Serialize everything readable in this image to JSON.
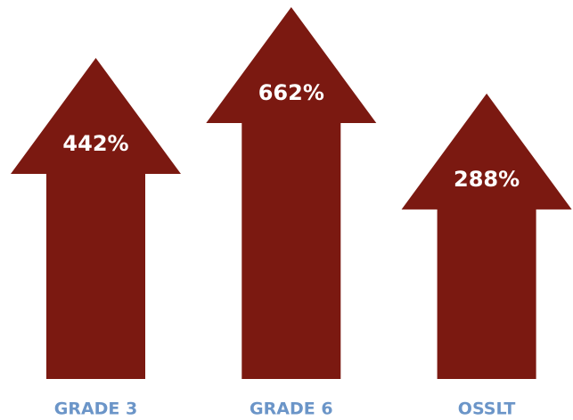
{
  "chart_data": {
    "type": "bar",
    "categories": [
      "GRADE 3",
      "GRADE 6",
      "OSSLT"
    ],
    "values": [
      442,
      662,
      288
    ],
    "value_labels": [
      "442%",
      "662%",
      "288%"
    ],
    "color": "#7b1911",
    "label_color": "#6b95c8"
  }
}
